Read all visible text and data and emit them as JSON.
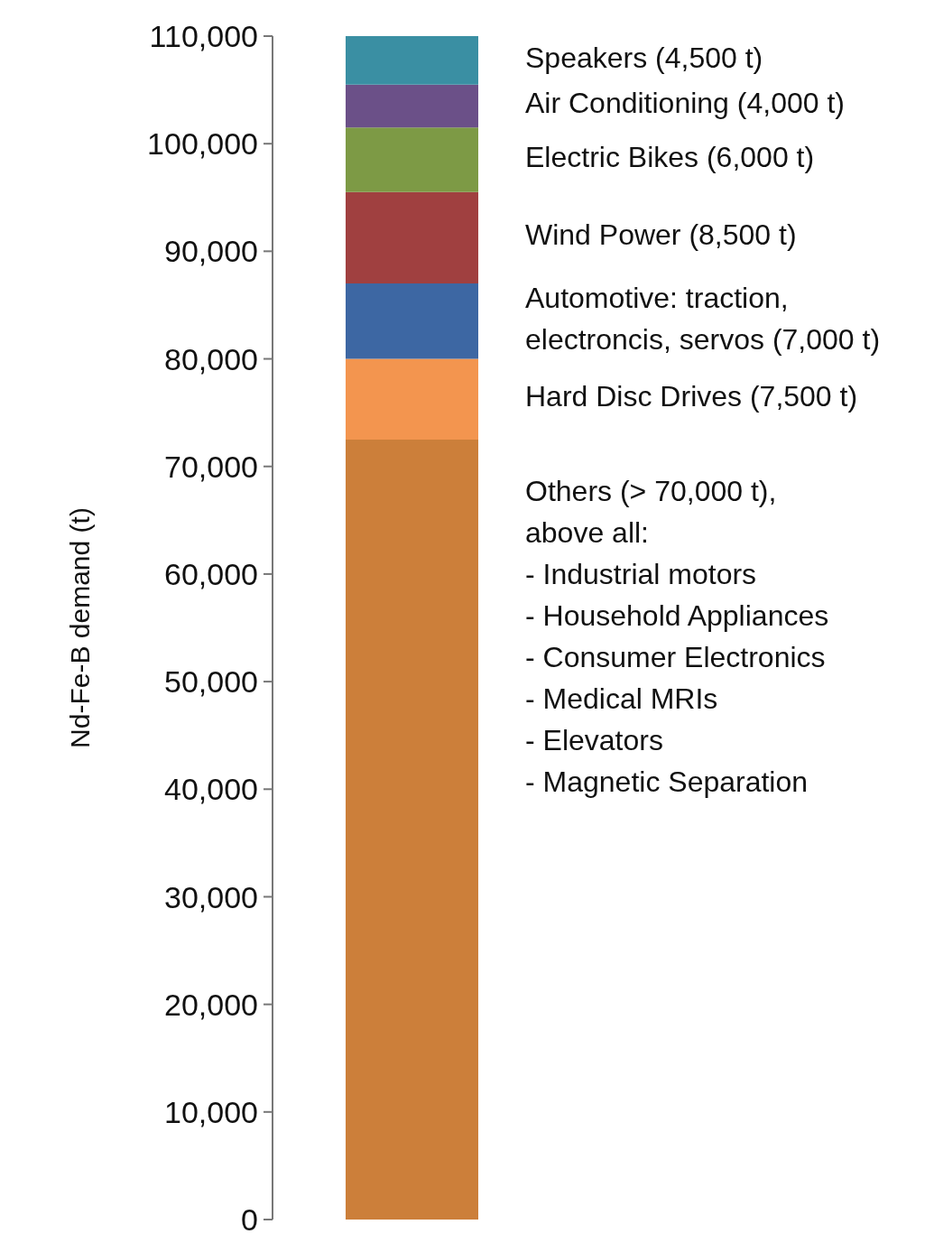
{
  "chart_data": {
    "type": "bar",
    "stacked": true,
    "categories": [
      null
    ],
    "ylabel": "Nd-Fe-B demand (t)",
    "ylim": [
      0,
      110000
    ],
    "yticks": [
      0,
      {
        "value": 10000,
        "label": "10,000"
      },
      {
        "value": 20000,
        "label": "20,000"
      },
      {
        "value": 30000,
        "label": "30,000"
      },
      {
        "value": 40000,
        "label": "40,000"
      },
      {
        "value": 50000,
        "label": "50,000"
      },
      {
        "value": 60000,
        "label": "60,000"
      },
      {
        "value": 70000,
        "label": "70,000"
      },
      {
        "value": 80000,
        "label": "80,000"
      },
      {
        "value": 90000,
        "label": "90,000"
      },
      {
        "value": 100000,
        "label": "100,000"
      },
      {
        "value": 110000,
        "label": "110,000"
      }
    ],
    "grid": false,
    "legend": false,
    "series": [
      {
        "name": "Others (> 70,000 t),\nabove all:\n- Industrial motors\n- Household Appliances\n- Consumer Electronics\n- Medical MRIs\n- Elevators\n- Magnetic Separation",
        "color": "#cc7f3a",
        "values": [
          72500
        ]
      },
      {
        "name": "Hard Disc Drives (7,500 t)",
        "color": "#f3954f",
        "values": [
          7500
        ]
      },
      {
        "name": "Automotive: traction,\nelectroncis, servos (7,000 t)",
        "color": "#3d67a3",
        "values": [
          7000
        ]
      },
      {
        "name": "Wind Power (8,500 t)",
        "color": "#a04040",
        "values": [
          8500
        ]
      },
      {
        "name": "Electric Bikes (6,000 t)",
        "color": "#7d9a45",
        "values": [
          6000
        ]
      },
      {
        "name": "Air Conditioning (4,000 t)",
        "color": "#6b5088",
        "values": [
          4000
        ]
      },
      {
        "name": "Speakers (4,500 t)",
        "color": "#3a8fa3",
        "values": [
          4500
        ]
      }
    ]
  }
}
